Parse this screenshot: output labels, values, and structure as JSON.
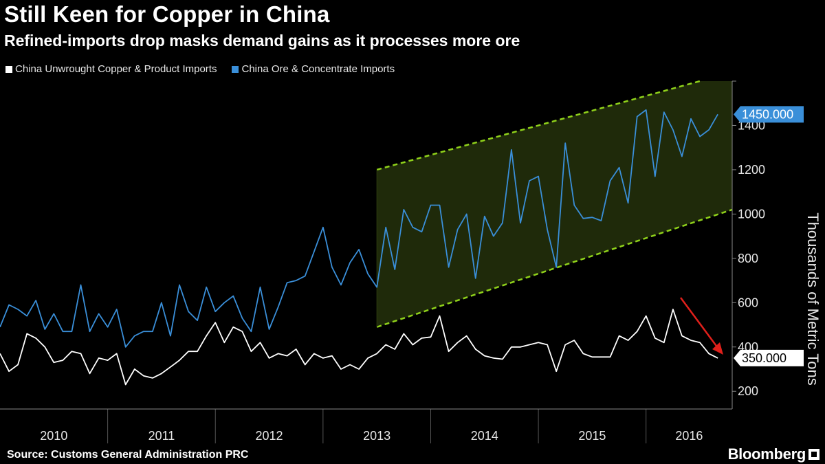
{
  "header": {
    "title": "Still Keen for Copper in China",
    "subtitle": "Refined-imports drop masks demand gains as it processes more ore"
  },
  "legend": {
    "items": [
      {
        "label": "China Unwrought Copper & Product Imports",
        "color": "#ffffff"
      },
      {
        "label": "China Ore & Concentrate Imports",
        "color": "#3a8fd9"
      }
    ]
  },
  "footer": {
    "source": "Source: Customs General Administration PRC",
    "brand": "Bloomberg"
  },
  "chart_data": {
    "type": "line",
    "ylabel": "Thousands of Metric Tons",
    "ylim": [
      120,
      1600
    ],
    "yticks": [
      200,
      400,
      600,
      800,
      1000,
      1200,
      1400
    ],
    "xlim": [
      2010.0,
      2016.8
    ],
    "year_labels": [
      "2010",
      "2011",
      "2012",
      "2013",
      "2014",
      "2015",
      "2016"
    ],
    "grid": false,
    "colors": {
      "ore": "#3a8fd9",
      "unwrought": "#ffffff",
      "channel": "#8fd11a",
      "arrow": "#e0201b"
    },
    "series": [
      {
        "name": "China Ore & Concentrate Imports",
        "key": "ore",
        "start": 2010.0,
        "values": [
          490,
          590,
          570,
          540,
          610,
          480,
          550,
          470,
          470,
          680,
          470,
          550,
          490,
          570,
          400,
          450,
          470,
          470,
          600,
          450,
          680,
          560,
          520,
          670,
          560,
          600,
          630,
          530,
          470,
          670,
          480,
          580,
          690,
          700,
          720,
          830,
          940,
          760,
          680,
          780,
          840,
          730,
          670,
          940,
          750,
          1020,
          940,
          920,
          1040,
          1040,
          760,
          930,
          1000,
          710,
          990,
          900,
          960,
          1290,
          960,
          1150,
          1170,
          930,
          760,
          1320,
          1040,
          980,
          985,
          970,
          1150,
          1210,
          1050,
          1440,
          1470,
          1170,
          1460,
          1380,
          1260,
          1430,
          1350,
          1380,
          1450
        ],
        "last_value_label": "1450.000"
      },
      {
        "name": "China Unwrought Copper & Product Imports",
        "key": "unwrought",
        "start": 2010.0,
        "values": [
          370,
          290,
          320,
          460,
          440,
          400,
          330,
          340,
          380,
          370,
          280,
          350,
          340,
          370,
          230,
          300,
          270,
          260,
          280,
          310,
          340,
          380,
          380,
          450,
          510,
          420,
          490,
          470,
          380,
          420,
          350,
          370,
          360,
          390,
          320,
          370,
          350,
          360,
          300,
          320,
          300,
          350,
          370,
          410,
          390,
          460,
          410,
          440,
          445,
          540,
          380,
          420,
          450,
          390,
          360,
          350,
          345,
          400,
          400,
          410,
          420,
          410,
          290,
          410,
          430,
          370,
          355,
          355,
          355,
          450,
          430,
          470,
          540,
          440,
          420,
          570,
          450,
          430,
          420,
          370,
          350
        ],
        "last_value_label": "350.000"
      }
    ]
  }
}
